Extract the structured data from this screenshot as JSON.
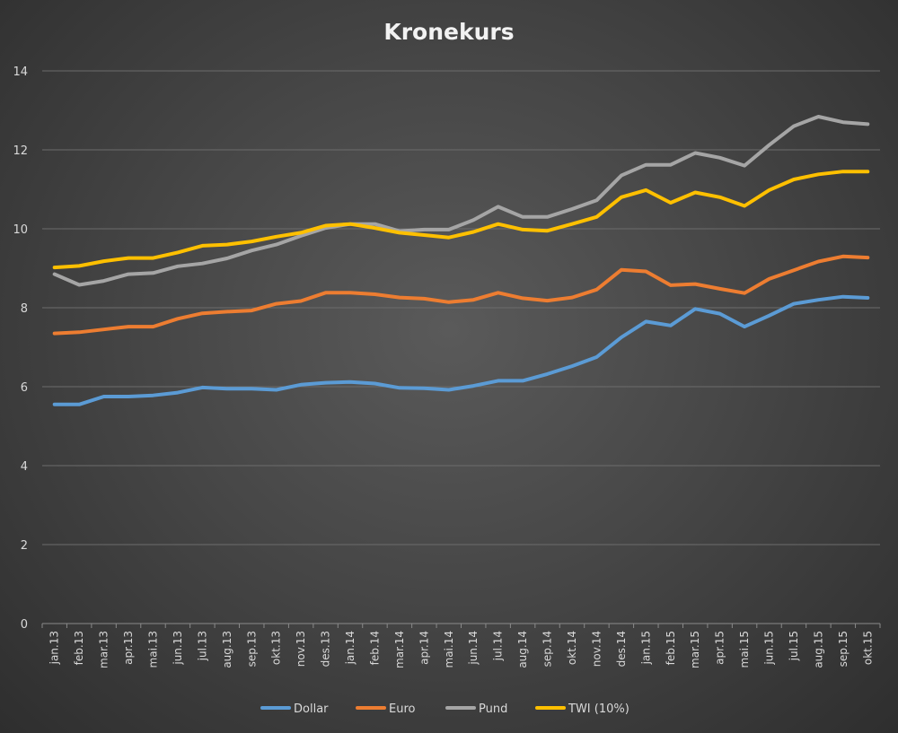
{
  "chart_data": {
    "type": "line",
    "title": "Kronekurs",
    "xlabel": "",
    "ylabel": "",
    "ylim": [
      0,
      14
    ],
    "yticks": [
      "0",
      "2",
      "4",
      "6",
      "8",
      "10",
      "12",
      "14"
    ],
    "grid": true,
    "legend_position": "bottom",
    "categories": [
      "jan.13",
      "feb.13",
      "mar.13",
      "apr.13",
      "mai.13",
      "jun.13",
      "jul.13",
      "aug.13",
      "sep.13",
      "okt.13",
      "nov.13",
      "des.13",
      "jan.14",
      "feb.14",
      "mar.14",
      "apr.14",
      "mai.14",
      "jun.14",
      "jul.14",
      "aug.14",
      "sep.14",
      "okt.14",
      "nov.14",
      "des.14",
      "jan.15",
      "feb.15",
      "mar.15",
      "apr.15",
      "mai.15",
      "jun.15",
      "jul.15",
      "aug.15",
      "sep.15",
      "okt.15"
    ],
    "series": [
      {
        "name": "Dollar",
        "color": "#5b9bd5",
        "values": [
          5.55,
          5.55,
          5.75,
          5.75,
          5.78,
          5.85,
          5.98,
          5.95,
          5.95,
          5.92,
          6.05,
          6.1,
          6.12,
          6.08,
          5.97,
          5.96,
          5.92,
          6.02,
          6.15,
          6.15,
          6.32,
          6.52,
          6.75,
          7.25,
          7.65,
          7.55,
          7.97,
          7.85,
          7.52,
          7.8,
          8.1,
          8.2,
          8.28,
          8.25
        ]
      },
      {
        "name": "Euro",
        "color": "#ed7d31",
        "values": [
          7.35,
          7.38,
          7.45,
          7.52,
          7.52,
          7.72,
          7.86,
          7.9,
          7.93,
          8.1,
          8.17,
          8.38,
          8.38,
          8.34,
          8.26,
          8.23,
          8.14,
          8.2,
          8.38,
          8.24,
          8.18,
          8.26,
          8.46,
          8.96,
          8.92,
          8.57,
          8.6,
          8.48,
          8.37,
          8.73,
          8.95,
          9.17,
          9.3,
          9.27
        ]
      },
      {
        "name": "Pund",
        "color": "#a5a5a5",
        "values": [
          8.85,
          8.58,
          8.68,
          8.85,
          8.88,
          9.05,
          9.12,
          9.25,
          9.45,
          9.6,
          9.82,
          10.02,
          10.12,
          10.12,
          9.94,
          9.98,
          9.98,
          10.22,
          10.56,
          10.3,
          10.3,
          10.5,
          10.72,
          11.35,
          11.62,
          11.62,
          11.92,
          11.8,
          11.6,
          12.12,
          12.6,
          12.84,
          12.7,
          12.65
        ]
      },
      {
        "name": "TWI (10%)",
        "color": "#ffc000",
        "values": [
          9.02,
          9.06,
          9.18,
          9.26,
          9.26,
          9.4,
          9.57,
          9.6,
          9.68,
          9.8,
          9.9,
          10.08,
          10.12,
          10.02,
          9.9,
          9.84,
          9.78,
          9.92,
          10.12,
          9.98,
          9.95,
          10.12,
          10.3,
          10.8,
          10.98,
          10.66,
          10.92,
          10.8,
          10.58,
          10.98,
          11.25,
          11.38,
          11.45,
          11.45
        ]
      }
    ]
  }
}
